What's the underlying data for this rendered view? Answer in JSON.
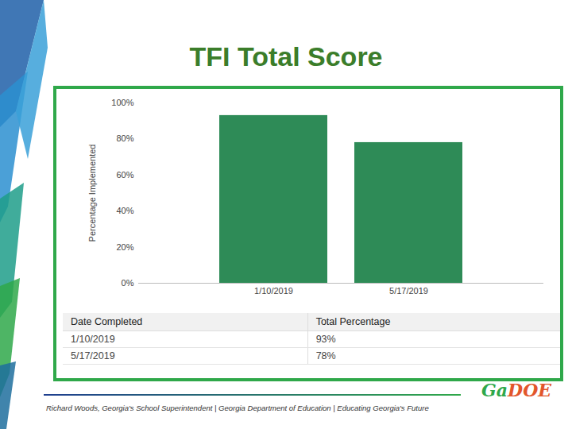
{
  "chart_data": {
    "type": "bar",
    "title": "TFI Total Score",
    "y_label": "Percentage Implemented",
    "categories": [
      "1/10/2019",
      "5/17/2019"
    ],
    "values": [
      93,
      78
    ],
    "color": "#2e8b57",
    "ylim": [
      0,
      100
    ],
    "yticks": [
      {
        "value": 0,
        "label": "0%"
      },
      {
        "value": 20,
        "label": "20%"
      },
      {
        "value": 40,
        "label": "40%"
      },
      {
        "value": 60,
        "label": "60%"
      },
      {
        "value": 80,
        "label": "80%"
      },
      {
        "value": 100,
        "label": "100%"
      }
    ],
    "grid": false,
    "data_labels": false
  },
  "table": {
    "header": [
      "Date Completed",
      "Total Percentage"
    ],
    "rows": [
      [
        "1/10/2019",
        "93%"
      ],
      [
        "5/17/2019",
        "78%"
      ]
    ]
  },
  "footer": "Richard Woods, Georgia's School Superintendent | Georgia Department of Education | Educating Georgia's Future",
  "logo": "GaDOE"
}
